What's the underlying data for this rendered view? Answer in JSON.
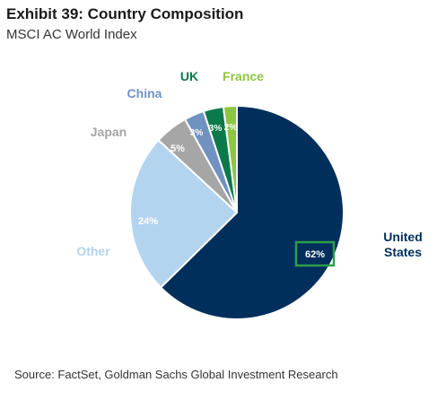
{
  "header": {
    "title": "Exhibit 39: Country Composition",
    "subtitle": "MSCI AC World Index"
  },
  "chart_data": {
    "type": "pie",
    "slices": [
      {
        "name": "United States",
        "label": "United\nStates",
        "value": 62,
        "value_label": "62%",
        "color": "#002f5c",
        "label_color": "#002f5c",
        "highlight": true
      },
      {
        "name": "Other",
        "label": "Other",
        "value": 24,
        "value_label": "24%",
        "color": "#b3d4ee",
        "label_color": "#b3d4ee"
      },
      {
        "name": "Japan",
        "label": "Japan",
        "value": 5,
        "value_label": "5%",
        "color": "#a6a6a6",
        "label_color": "#a6a6a6"
      },
      {
        "name": "China",
        "label": "China",
        "value": 3,
        "value_label": "3%",
        "color": "#6f92c1",
        "label_color": "#6f92c1"
      },
      {
        "name": "UK",
        "label": "UK",
        "value": 3,
        "value_label": "3%",
        "color": "#0a7a4a",
        "label_color": "#0a7a4a"
      },
      {
        "name": "France",
        "label": "France",
        "value": 2,
        "value_label": "2%",
        "color": "#8dc63f",
        "label_color": "#8dc63f"
      }
    ],
    "highlight_color": "#2e9e4a"
  },
  "footer": {
    "source": "Source: FactSet, Goldman Sachs Global Investment Research"
  }
}
